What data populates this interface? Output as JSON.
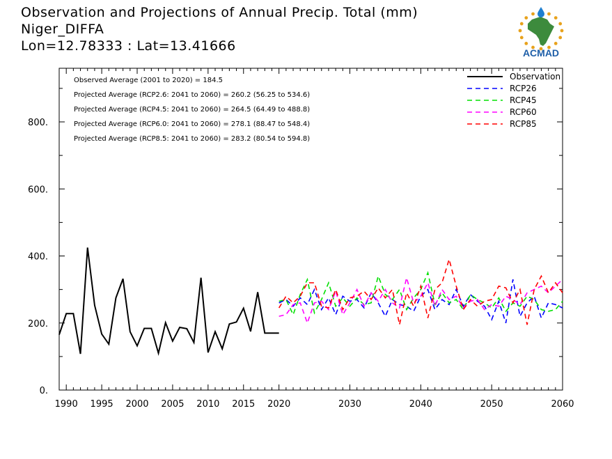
{
  "header": {
    "title_line1": "Observation and Projections of Annual Precip. Total (mm)",
    "title_line2": "Niger_DIFFA",
    "title_line3": "Lon=12.78333 : Lat=13.41666"
  },
  "logo": {
    "text": "ACMAD",
    "text_color": "#1f5fa8",
    "africa_color": "#3d8b3d",
    "rays_color": "#e8a21c",
    "drop_color": "#1f7fd0"
  },
  "chart_data": {
    "type": "line",
    "xlim": [
      1989,
      2060
    ],
    "ylim": [
      0,
      960
    ],
    "x_ticks": [
      1990,
      1995,
      2000,
      2005,
      2010,
      2015,
      2020,
      2030,
      2040,
      2050,
      2060
    ],
    "y_ticks": [
      0,
      200,
      400,
      600,
      800
    ],
    "y_tick_labels": [
      "0.",
      "200.",
      "400.",
      "600.",
      "800."
    ],
    "stats": [
      "Observed Average (2001 to 2020) = 184.5",
      "Projected Average (RCP2.6: 2041 to 2060) = 260.2 (56.25 to 534.6)",
      "Projected Average (RCP4.5: 2041 to 2060) = 264.5 (64.49 to 488.8)",
      "Projected Average (RCP6.0: 2041 to 2060) = 278.1 (88.47 to 548.4)",
      "Projected Average (RCP8.5: 2041 to 2060) = 283.2 (80.54 to 594.8)"
    ],
    "legend_position": "top-right",
    "series": [
      {
        "name": "Observation",
        "color": "#000000",
        "dashed": false,
        "x": [
          1989,
          1990,
          1991,
          1992,
          1993,
          1994,
          1995,
          1996,
          1997,
          1998,
          1999,
          2000,
          2001,
          2002,
          2003,
          2004,
          2005,
          2006,
          2007,
          2008,
          2009,
          2010,
          2011,
          2012,
          2013,
          2014,
          2015,
          2016,
          2017,
          2018,
          2019,
          2020
        ],
        "values": [
          165,
          228,
          228,
          108,
          425,
          253,
          167,
          137,
          275,
          332,
          174,
          132,
          184,
          184,
          110,
          201,
          146,
          187,
          183,
          142,
          335,
          112,
          174,
          123,
          197,
          203,
          244,
          175,
          292,
          170,
          170,
          170
        ]
      },
      {
        "name": "RCP26",
        "color": "#0000ff",
        "dashed": true,
        "x": [
          2020,
          2021,
          2022,
          2023,
          2024,
          2025,
          2026,
          2027,
          2028,
          2029,
          2030,
          2031,
          2032,
          2033,
          2034,
          2035,
          2036,
          2037,
          2038,
          2039,
          2040,
          2041,
          2042,
          2043,
          2044,
          2045,
          2046,
          2047,
          2048,
          2049,
          2050,
          2051,
          2052,
          2053,
          2054,
          2055,
          2056,
          2057,
          2058,
          2059,
          2060
        ],
        "values": [
          260,
          270,
          250,
          275,
          255,
          300,
          240,
          275,
          225,
          280,
          265,
          270,
          245,
          290,
          260,
          220,
          270,
          255,
          250,
          235,
          280,
          300,
          240,
          270,
          255,
          300,
          250,
          285,
          265,
          250,
          210,
          265,
          200,
          330,
          220,
          260,
          280,
          215,
          260,
          255,
          245
        ]
      },
      {
        "name": "RCP45",
        "color": "#00e000",
        "dashed": true,
        "x": [
          2020,
          2021,
          2022,
          2023,
          2024,
          2025,
          2026,
          2027,
          2028,
          2029,
          2030,
          2031,
          2032,
          2033,
          2034,
          2035,
          2036,
          2037,
          2038,
          2039,
          2040,
          2041,
          2042,
          2043,
          2044,
          2045,
          2046,
          2047,
          2048,
          2049,
          2050,
          2051,
          2052,
          2053,
          2054,
          2055,
          2056,
          2057,
          2058,
          2059,
          2060
        ],
        "values": [
          265,
          270,
          225,
          285,
          330,
          230,
          270,
          320,
          250,
          275,
          250,
          275,
          255,
          260,
          340,
          285,
          270,
          300,
          240,
          275,
          300,
          350,
          255,
          290,
          260,
          270,
          240,
          285,
          270,
          260,
          245,
          275,
          235,
          260,
          250,
          280,
          270,
          240,
          235,
          240,
          265
        ]
      },
      {
        "name": "RCP60",
        "color": "#ff00ff",
        "dashed": true,
        "x": [
          2020,
          2021,
          2022,
          2023,
          2024,
          2025,
          2026,
          2027,
          2028,
          2029,
          2030,
          2031,
          2032,
          2033,
          2034,
          2035,
          2036,
          2037,
          2038,
          2039,
          2040,
          2041,
          2042,
          2043,
          2044,
          2045,
          2046,
          2047,
          2048,
          2049,
          2050,
          2051,
          2052,
          2053,
          2054,
          2055,
          2056,
          2057,
          2058,
          2059,
          2060
        ],
        "values": [
          220,
          225,
          255,
          260,
          200,
          260,
          265,
          240,
          295,
          225,
          260,
          300,
          250,
          290,
          265,
          300,
          260,
          245,
          335,
          260,
          280,
          320,
          250,
          300,
          270,
          280,
          245,
          265,
          270,
          240,
          255,
          250,
          280,
          270,
          255,
          290,
          300,
          310,
          290,
          310,
          330
        ]
      },
      {
        "name": "RCP85",
        "color": "#ff0000",
        "dashed": true,
        "x": [
          2020,
          2021,
          2022,
          2023,
          2024,
          2025,
          2026,
          2027,
          2028,
          2029,
          2030,
          2031,
          2032,
          2033,
          2034,
          2035,
          2036,
          2037,
          2038,
          2039,
          2040,
          2041,
          2042,
          2043,
          2044,
          2045,
          2046,
          2047,
          2048,
          2049,
          2050,
          2051,
          2052,
          2053,
          2054,
          2055,
          2056,
          2057,
          2058,
          2059,
          2060
        ],
        "values": [
          245,
          280,
          260,
          280,
          320,
          320,
          250,
          245,
          300,
          240,
          275,
          280,
          295,
          270,
          305,
          275,
          300,
          195,
          290,
          250,
          310,
          215,
          300,
          320,
          390,
          310,
          240,
          270,
          250,
          265,
          270,
          310,
          305,
          260,
          300,
          195,
          300,
          340,
          290,
          320,
          290
        ]
      }
    ]
  }
}
